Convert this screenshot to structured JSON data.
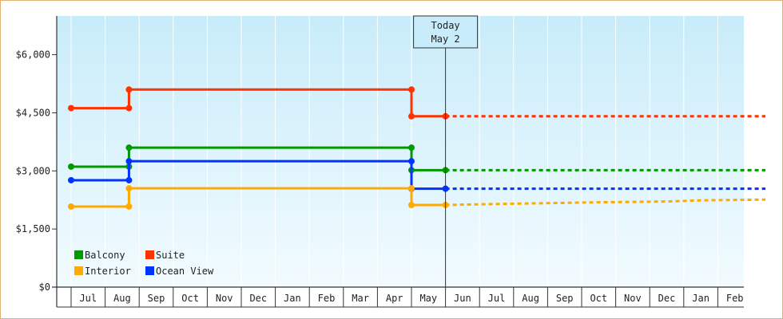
{
  "chart_data": {
    "type": "line",
    "step": true,
    "x_months": [
      "Jul",
      "Aug",
      "Sep",
      "Oct",
      "Nov",
      "Dec",
      "Jan",
      "Feb",
      "Mar",
      "Apr",
      "May",
      "Jun",
      "Jul",
      "Aug",
      "Sep",
      "Oct",
      "Nov",
      "Dec",
      "Jan",
      "Feb"
    ],
    "ylim": [
      0,
      7000
    ],
    "yticks": [
      {
        "value": 0,
        "label": "$0"
      },
      {
        "value": 1500,
        "label": "$1,500"
      },
      {
        "value": 3000,
        "label": "$3,000"
      },
      {
        "value": 4500,
        "label": "$4,500"
      },
      {
        "value": 6000,
        "label": "$6,000"
      }
    ],
    "grid": "vertical",
    "today": {
      "line1": "Today",
      "line2": "May 2",
      "x": 10.5
    },
    "legend_position": "bottom-left",
    "series": [
      {
        "name": "Suite",
        "color": "#ff3300",
        "points": [
          [
            -0.5,
            4620
          ],
          [
            1.2,
            4620
          ],
          [
            1.2,
            5100
          ],
          [
            9.5,
            5100
          ],
          [
            9.5,
            4410
          ],
          [
            10.5,
            4410
          ]
        ],
        "markers": [
          [
            -0.5,
            4620
          ],
          [
            1.2,
            4620
          ],
          [
            1.2,
            5100
          ],
          [
            9.5,
            5100
          ],
          [
            9.5,
            4410
          ],
          [
            10.5,
            4410
          ]
        ],
        "forecast": [
          [
            10.5,
            4410
          ],
          [
            19.9,
            4410
          ]
        ]
      },
      {
        "name": "Balcony",
        "color": "#009900",
        "points": [
          [
            -0.5,
            3110
          ],
          [
            1.2,
            3110
          ],
          [
            1.2,
            3600
          ],
          [
            9.5,
            3600
          ],
          [
            9.5,
            3020
          ],
          [
            10.5,
            3020
          ]
        ],
        "markers": [
          [
            -0.5,
            3110
          ],
          [
            1.2,
            3110
          ],
          [
            1.2,
            3600
          ],
          [
            9.5,
            3600
          ],
          [
            9.5,
            3020
          ],
          [
            10.5,
            3020
          ]
        ],
        "forecast": [
          [
            10.5,
            3020
          ],
          [
            19.9,
            3020
          ]
        ]
      },
      {
        "name": "Ocean View",
        "color": "#0033ff",
        "points": [
          [
            -0.5,
            2760
          ],
          [
            1.2,
            2760
          ],
          [
            1.2,
            3250
          ],
          [
            9.5,
            3250
          ],
          [
            9.5,
            2540
          ],
          [
            10.5,
            2540
          ]
        ],
        "markers": [
          [
            -0.5,
            2760
          ],
          [
            1.2,
            2760
          ],
          [
            1.2,
            3250
          ],
          [
            9.5,
            3250
          ],
          [
            9.5,
            2540
          ],
          [
            10.5,
            2540
          ]
        ],
        "forecast": [
          [
            10.5,
            2540
          ],
          [
            19.9,
            2540
          ]
        ]
      },
      {
        "name": "Interior",
        "color": "#ffaa00",
        "points": [
          [
            -0.5,
            2080
          ],
          [
            1.2,
            2080
          ],
          [
            1.2,
            2550
          ],
          [
            9.5,
            2550
          ],
          [
            9.5,
            2120
          ],
          [
            10.5,
            2120
          ]
        ],
        "markers": [
          [
            -0.5,
            2080
          ],
          [
            1.2,
            2080
          ],
          [
            1.2,
            2550
          ],
          [
            9.5,
            2550
          ],
          [
            9.5,
            2120
          ],
          [
            10.5,
            2120
          ]
        ],
        "forecast": [
          [
            10.5,
            2120
          ],
          [
            11.0,
            2130
          ],
          [
            13.0,
            2160
          ],
          [
            15.0,
            2190
          ],
          [
            17.0,
            2210
          ],
          [
            18.0,
            2240
          ],
          [
            19.9,
            2260
          ]
        ]
      }
    ],
    "legend": [
      {
        "name": "Balcony",
        "color": "#009900"
      },
      {
        "name": "Suite",
        "color": "#ff3300"
      },
      {
        "name": "Interior",
        "color": "#ffaa00"
      },
      {
        "name": "Ocean View",
        "color": "#0033ff"
      }
    ]
  }
}
